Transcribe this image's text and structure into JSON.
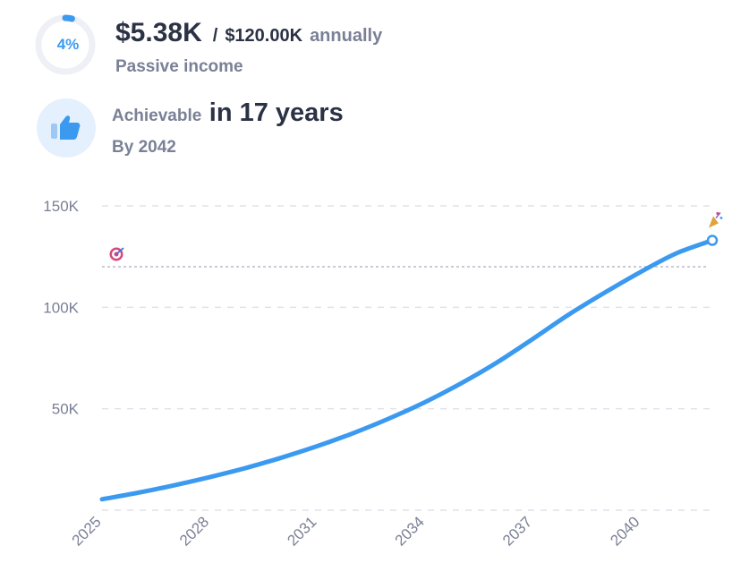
{
  "progress": {
    "percent_label": "4%",
    "fraction": 0.04,
    "color": "#3b9af0"
  },
  "income": {
    "current": "$5.38K",
    "separator": "/",
    "target": "$120.00K",
    "period": "annually",
    "label": "Passive income"
  },
  "achievability": {
    "icon": "thumbs-up-icon",
    "label": "Achievable",
    "value": "in 17 years",
    "by": "By 2042"
  },
  "chart_data": {
    "type": "line",
    "x": [
      2025,
      2026,
      2027,
      2028,
      2029,
      2030,
      2031,
      2032,
      2033,
      2034,
      2035,
      2036,
      2037,
      2038,
      2039,
      2040,
      2041,
      2042
    ],
    "series": [
      {
        "values": [
          5.4,
          8.6,
          12.2,
          16.3,
          20.8,
          25.9,
          31.6,
          38.0,
          45.2,
          53.3,
          62.5,
          72.8,
          84.4,
          96.4,
          107.2,
          117.4,
          126.6,
          133.0
        ],
        "color": "#3b9af0"
      }
    ],
    "x_ticks": [
      "2025",
      "2028",
      "2031",
      "2034",
      "2037",
      "2040"
    ],
    "y_ticks": [
      "50K",
      "100K",
      "150K"
    ],
    "y_tick_values": [
      50,
      100,
      150
    ],
    "xlim": [
      2025,
      2042
    ],
    "ylim": [
      0,
      150
    ],
    "goal_line": 120,
    "goal_icon": "target-icon",
    "end_icon": "party-popper-icon",
    "grid": "horizontal-dashed",
    "grid_color": "#dfe2ea",
    "goal_color": "#b9bcc8"
  }
}
